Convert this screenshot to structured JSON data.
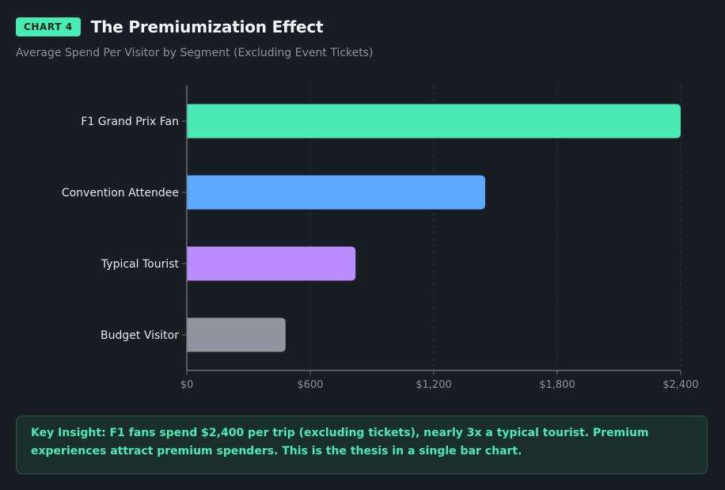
{
  "header": {
    "badge": "CHART 4",
    "title": "The Premiumization Effect",
    "subtitle": "Average Spend Per Visitor by Segment (Excluding Event Tickets)"
  },
  "insight": {
    "text": "Key Insight: F1 fans spend $2,400 per trip (excluding tickets), nearly 3x a typical tourist. Premium experiences attract premium spenders. This is the thesis in a single bar chart."
  },
  "colors": {
    "background": "#181c23",
    "accent": "#4aeab5",
    "axis": "#6b7078",
    "grid": "#2c323b"
  },
  "chart_data": {
    "type": "bar",
    "orientation": "horizontal",
    "title": "The Premiumization Effect",
    "subtitle": "Average Spend Per Visitor by Segment (Excluding Event Tickets)",
    "categories": [
      "F1 Grand Prix Fan",
      "Convention Attendee",
      "Typical Tourist",
      "Budget Visitor"
    ],
    "values": [
      2400,
      1450,
      820,
      480
    ],
    "bar_colors": [
      "#4aeab5",
      "#5aa8ff",
      "#bb8cff",
      "#8f959f"
    ],
    "xlim": [
      0,
      2400
    ],
    "xticks": [
      0,
      600,
      1200,
      1800,
      2400
    ],
    "xtick_labels": [
      "$0",
      "$600",
      "$1,200",
      "$1,800",
      "$2,400"
    ],
    "xlabel": "",
    "ylabel": "",
    "grid": "vertical dashed"
  }
}
